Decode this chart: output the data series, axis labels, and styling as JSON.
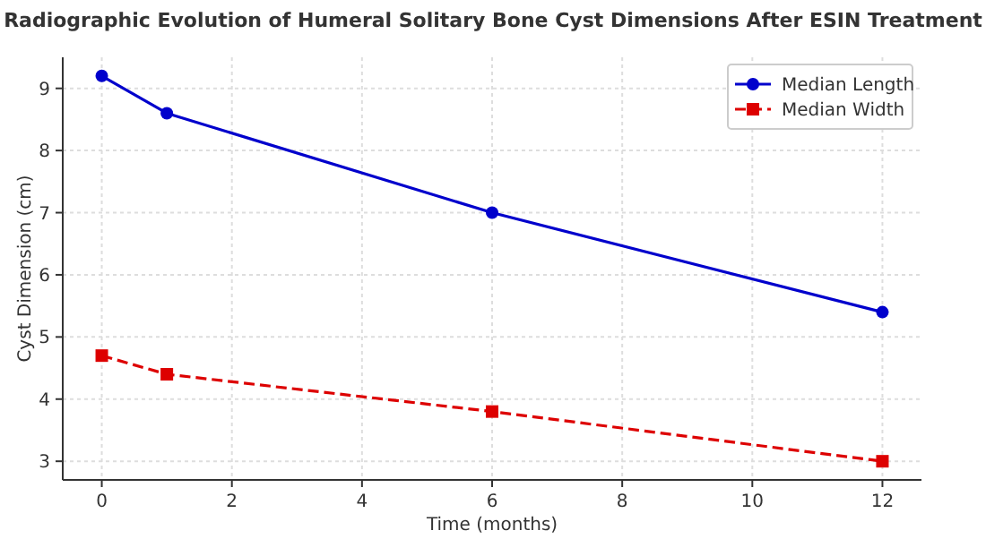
{
  "chart_data": {
    "type": "line",
    "title": "Radiographic Evolution of Humeral Solitary Bone Cyst Dimensions After ESIN Treatment",
    "xlabel": "Time (months)",
    "ylabel": "Cyst Dimension (cm)",
    "x": [
      0,
      1,
      6,
      12
    ],
    "series": [
      {
        "name": "Median Length",
        "color": "#0000cc",
        "values": [
          9.2,
          8.6,
          7.0,
          5.4
        ],
        "marker": "circle",
        "line_style": "solid"
      },
      {
        "name": "Median Width",
        "color": "#dd0000",
        "values": [
          4.7,
          4.4,
          3.8,
          3.0
        ],
        "marker": "square",
        "line_style": "dashed"
      }
    ],
    "xlim": [
      -0.6,
      12.6
    ],
    "xticks": [
      0,
      2,
      4,
      6,
      8,
      10,
      12
    ],
    "ylim": [
      2.7,
      9.5
    ],
    "yticks": [
      3,
      4,
      5,
      6,
      7,
      8,
      9
    ],
    "grid": true,
    "legend": "top right"
  }
}
